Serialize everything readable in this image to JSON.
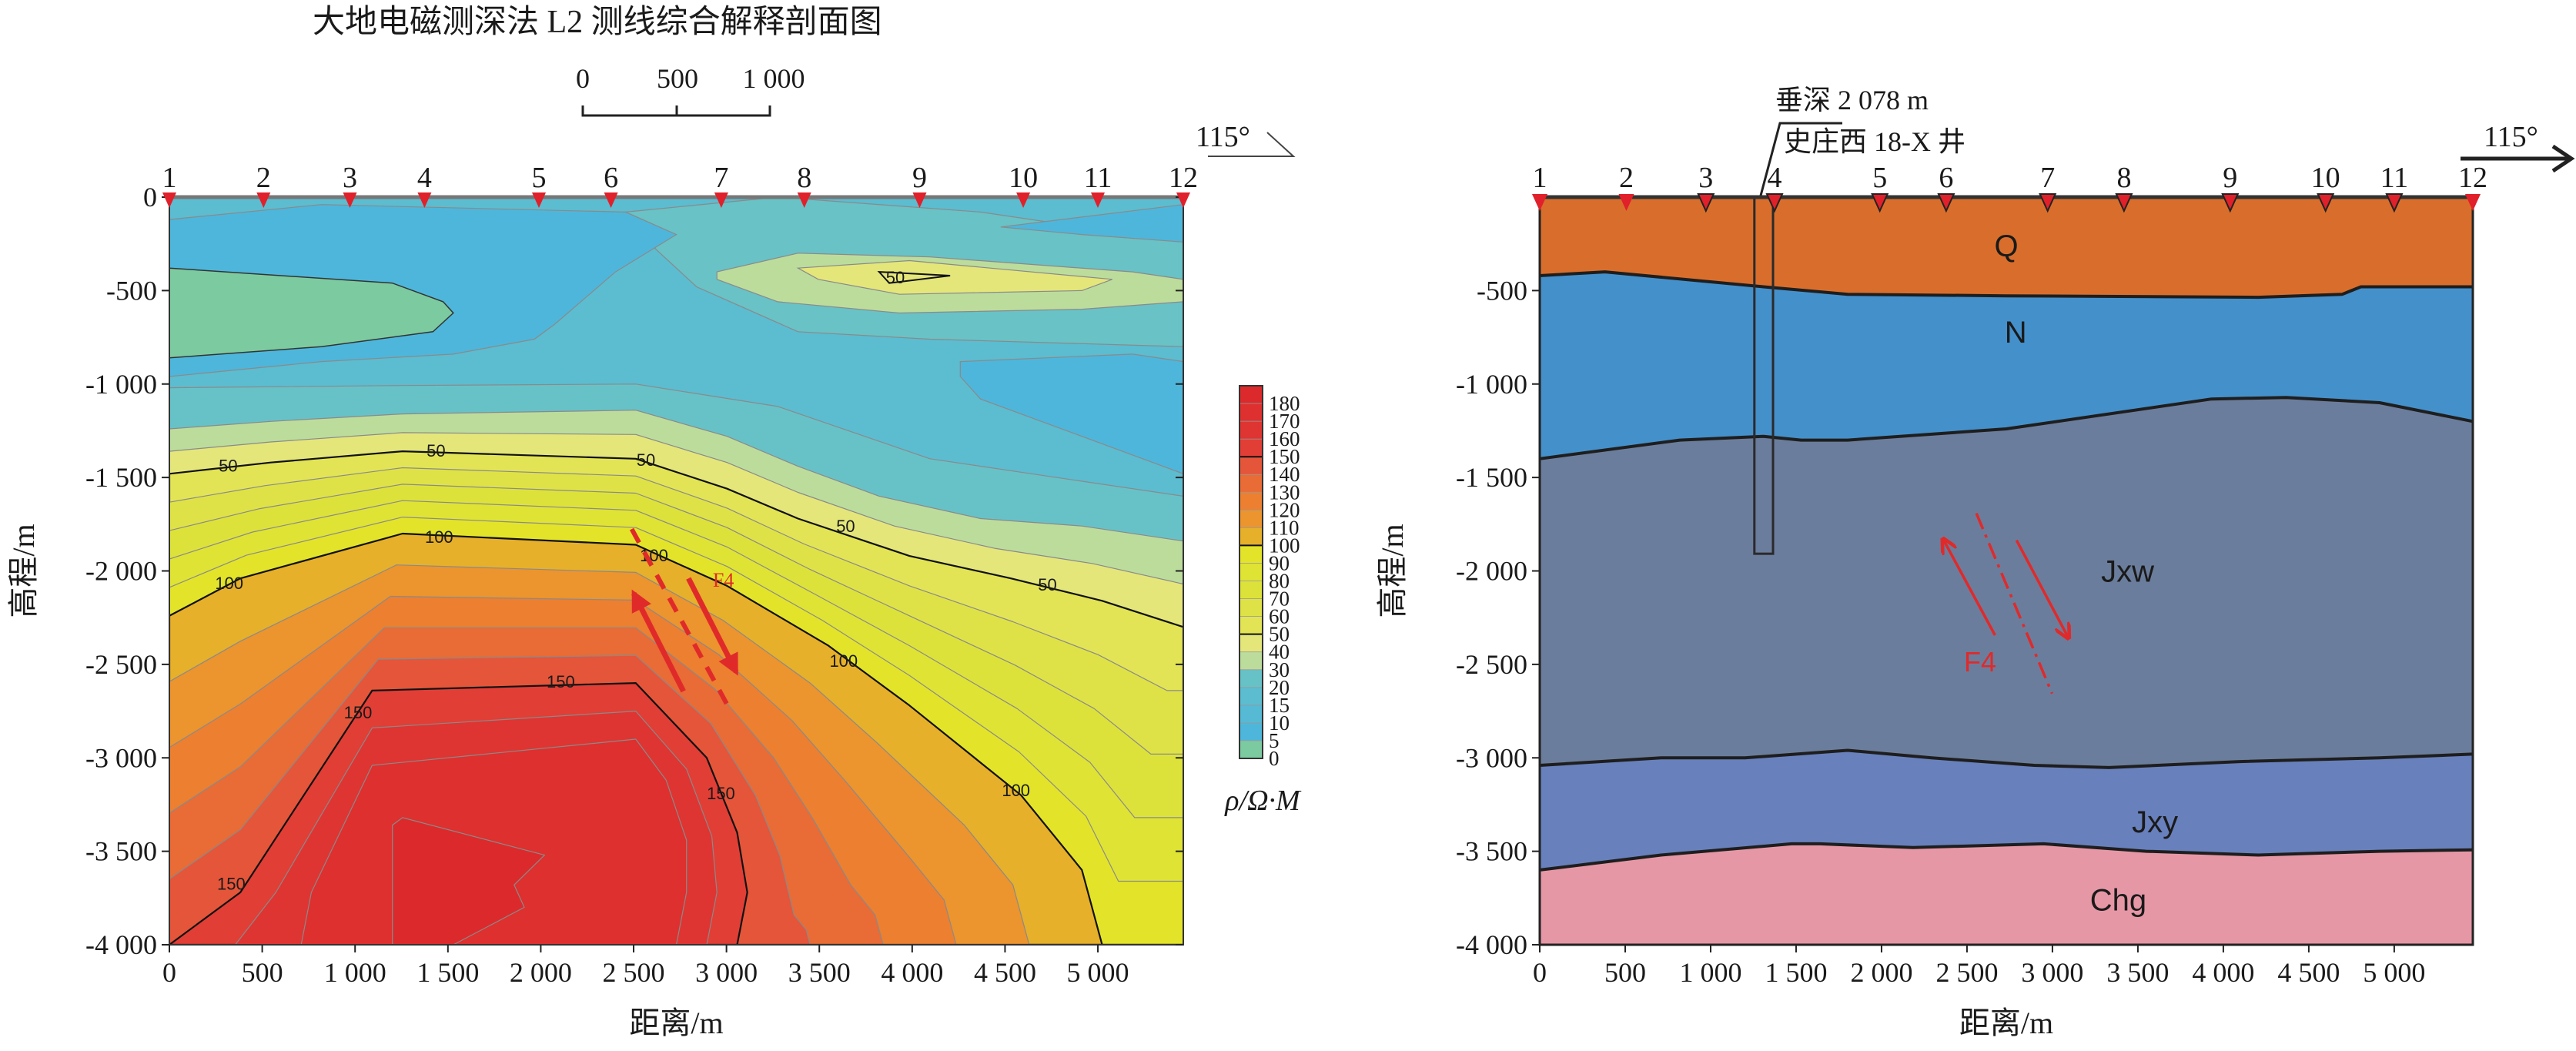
{
  "title": "大地电磁测深法 L2 测线综合解释剖面图",
  "scale_bar": {
    "labels": [
      "0",
      "500",
      "1 000"
    ]
  },
  "azimuth_label": "115°",
  "chart_data": [
    {
      "type": "heatmap",
      "title": "",
      "xlabel": "距离/m",
      "ylabel": "高程/m",
      "xlim": [
        0,
        5460
      ],
      "ylim": [
        -4000,
        0
      ],
      "xticks": [
        0,
        500,
        1000,
        1500,
        2000,
        2500,
        3000,
        3500,
        4000,
        4500,
        5000
      ],
      "xtick_labels": [
        "0",
        "500",
        "1 000",
        "1 500",
        "2 000",
        "2 500",
        "3 000",
        "3 500",
        "4 000",
        "4 500",
        "5 000"
      ],
      "yticks": [
        0,
        -500,
        -1000,
        -1500,
        -2000,
        -2500,
        -3000,
        -3500,
        -4000
      ],
      "ytick_labels": [
        "0",
        "-500",
        "-1 000",
        "-1 500",
        "-2 000",
        "-2 500",
        "-3 000",
        "-3 500",
        "-4 000"
      ],
      "stations": {
        "labels": [
          "1",
          "2",
          "3",
          "4",
          "5",
          "6",
          "7",
          "8",
          "9",
          "10",
          "11",
          "12"
        ],
        "x": [
          0,
          507,
          972,
          1374,
          1990,
          2378,
          2972,
          3419,
          4040,
          4598,
          5000,
          5460
        ]
      },
      "colorbar": {
        "label": "ρ/Ω·M",
        "levels": [
          0,
          5,
          10,
          15,
          20,
          30,
          40,
          50,
          60,
          70,
          80,
          90,
          100,
          110,
          120,
          130,
          140,
          150,
          160,
          170,
          180
        ],
        "tick_labels": [
          "180",
          "170",
          "160",
          "150",
          "140",
          "130",
          "120",
          "110",
          "100",
          "90",
          "80",
          "70",
          "60",
          "50",
          "40",
          "30",
          "20",
          "15",
          "10",
          "5",
          "0"
        ],
        "colors_bottom_to_top": [
          "#7ccaa0",
          "#4eb6db",
          "#56bad4",
          "#5cbcd0",
          "#67c2c8",
          "#bcdc9c",
          "#e4e67a",
          "#e2e456",
          "#dfe246",
          "#dde23b",
          "#dfe334",
          "#e3e429",
          "#e6b02a",
          "#ec942d",
          "#ec7f30",
          "#e96b35",
          "#e4553a",
          "#e13e36",
          "#de3532",
          "#dd302f",
          "#dc2a2c"
        ]
      },
      "labeled_contours": [
        50,
        100,
        150
      ],
      "contour_label_text": {
        "c50": "50",
        "c100": "100",
        "c150": "150"
      },
      "fault_label": "F4",
      "fault_color": "#e02a2a",
      "station_color": "#e0202a"
    },
    {
      "type": "area",
      "title": "",
      "xlabel": "距离/m",
      "ylabel": "高程/m",
      "xlim": [
        0,
        5460
      ],
      "ylim": [
        -4000,
        0
      ],
      "xticks": [
        0,
        500,
        1000,
        1500,
        2000,
        2500,
        3000,
        3500,
        4000,
        4500,
        5000
      ],
      "xtick_labels": [
        "0",
        "500",
        "1 000",
        "1 500",
        "2 000",
        "2 500",
        "3 000",
        "3 500",
        "4 000",
        "4 500",
        "5 000"
      ],
      "yticks": [
        -500,
        -1000,
        -1500,
        -2000,
        -2500,
        -3000,
        -3500,
        -4000
      ],
      "ytick_labels": [
        "-500",
        "-1 000",
        "-1 500",
        "-2 000",
        "-2 500",
        "-3 000",
        "-3 500",
        "-4 000"
      ],
      "stations": {
        "labels": [
          "1",
          "2",
          "3",
          "4",
          "5",
          "6",
          "7",
          "8",
          "9",
          "10",
          "11",
          "12"
        ],
        "x": [
          0,
          507,
          972,
          1374,
          1990,
          2378,
          2972,
          3419,
          4040,
          4598,
          5000,
          5460
        ]
      },
      "layers": [
        {
          "name": "Q",
          "color": "#d96e2c"
        },
        {
          "name": "N",
          "color": "#4490cb"
        },
        {
          "name": "Jxw",
          "color": "#6b7d9c"
        },
        {
          "name": "Jxy",
          "color": "#6880bc"
        },
        {
          "name": "Chg",
          "color": "#e697a6"
        }
      ],
      "boundaries": [
        {
          "between": [
            "Q",
            "N"
          ],
          "points": [
            [
              0,
              -420
            ],
            [
              382,
              -400
            ],
            [
              1310,
              -480
            ],
            [
              1802,
              -520
            ],
            [
              2730,
              -528
            ],
            [
              4204,
              -536
            ],
            [
              4696,
              -520
            ],
            [
              4805,
              -480
            ],
            [
              5460,
              -480
            ]
          ]
        },
        {
          "between": [
            "N",
            "Jxw"
          ],
          "points": [
            [
              0,
              -1400
            ],
            [
              819,
              -1300
            ],
            [
              1310,
              -1280
            ],
            [
              1529,
              -1300
            ],
            [
              1802,
              -1300
            ],
            [
              2730,
              -1240
            ],
            [
              3931,
              -1080
            ],
            [
              4368,
              -1072
            ],
            [
              4914,
              -1100
            ],
            [
              5460,
              -1200
            ]
          ]
        },
        {
          "between": [
            "Jxw",
            "Jxy"
          ],
          "points": [
            [
              0,
              -3040
            ],
            [
              710,
              -3000
            ],
            [
              1201,
              -3000
            ],
            [
              1802,
              -2960
            ],
            [
              2293,
              -3000
            ],
            [
              2894,
              -3040
            ],
            [
              3331,
              -3052
            ],
            [
              4095,
              -3020
            ],
            [
              4914,
              -3000
            ],
            [
              5460,
              -2980
            ]
          ]
        },
        {
          "between": [
            "Jxy",
            "Chg"
          ],
          "points": [
            [
              0,
              -3600
            ],
            [
              710,
              -3520
            ],
            [
              1474,
              -3460
            ],
            [
              1638,
              -3460
            ],
            [
              2184,
              -3480
            ],
            [
              2948,
              -3460
            ],
            [
              3549,
              -3500
            ],
            [
              4204,
              -3520
            ],
            [
              4914,
              -3500
            ],
            [
              5460,
              -3492
            ]
          ]
        }
      ],
      "well": {
        "name": "史庄西 18-X 井",
        "depth_label": "垂深 2 078 m",
        "x_range": [
          1256,
          1365
        ],
        "bottom": -1908
      },
      "fault": {
        "label": "F4",
        "color": "#e02a2a",
        "trace": [
          [
            2555,
            -1692
          ],
          [
            2998,
            -2656
          ]
        ],
        "hanging_arrow": [
          [
            2664,
            -2344
          ],
          [
            2364,
            -1836
          ]
        ],
        "foot_arrow": [
          [
            2790,
            -1836
          ],
          [
            3090,
            -2352
          ]
        ]
      },
      "station_color": "#e0202a"
    }
  ]
}
